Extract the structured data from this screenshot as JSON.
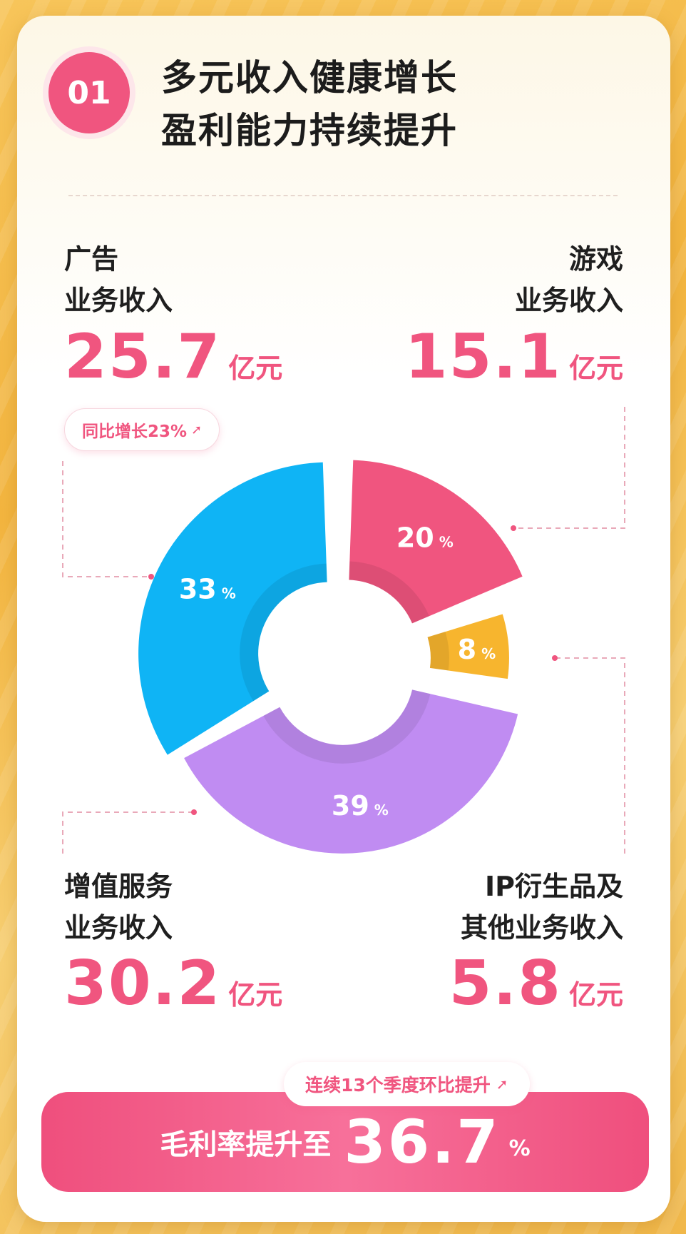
{
  "header": {
    "badge": "01",
    "title_line1": "多元收入健康增长",
    "title_line2": "盈利能力持续提升"
  },
  "chart_data": {
    "type": "pie",
    "categories": [
      "广告业务收入",
      "游戏业务收入",
      "增值服务业务收入",
      "IP衍生品及其他业务收入"
    ],
    "values": [
      25.7,
      15.1,
      30.2,
      5.8
    ],
    "unit": "亿元",
    "slice_percent_labels": [
      "33",
      "20",
      "39",
      "8"
    ],
    "percent_symbol": "%",
    "colors": [
      "#0fb4f5",
      "#f0557f",
      "#c08cf2",
      "#f7b52e"
    ]
  },
  "segments": {
    "ad": {
      "line1": "广告",
      "line2": "业务收入",
      "value": "25.7",
      "unit": "亿元",
      "growth": "同比增长23%",
      "growth_arrow": "➚"
    },
    "game": {
      "line1": "游戏",
      "line2": "业务收入",
      "value": "15.1",
      "unit": "亿元"
    },
    "vas": {
      "line1": "增值服务",
      "line2": "业务收入",
      "value": "30.2",
      "unit": "亿元"
    },
    "ip": {
      "line1": "IP衍生品及",
      "line2": "其他业务收入",
      "value": "5.8",
      "unit": "亿元"
    }
  },
  "gross_margin": {
    "label": "毛利率提升至",
    "value": "36.7",
    "unit": "%",
    "streak": "连续13个季度环比提升",
    "streak_arrow": "➚"
  }
}
